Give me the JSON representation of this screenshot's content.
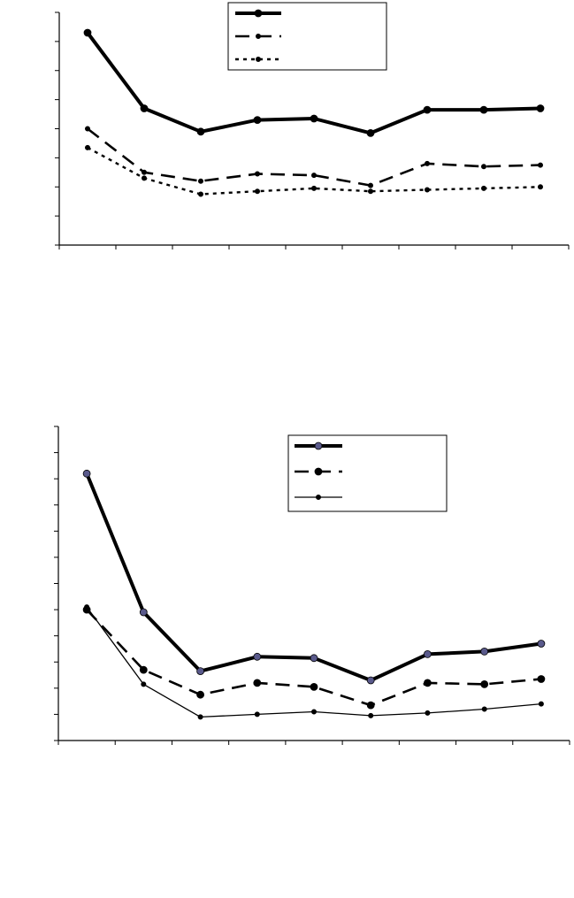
{
  "chart_data": [
    {
      "type": "line",
      "title": "",
      "xlabel": "",
      "ylabel": "",
      "x": [
        1,
        2,
        3,
        4,
        5,
        6,
        7,
        8,
        9
      ],
      "xlim": [
        0.5,
        9.5
      ],
      "ylim": [
        0,
        8
      ],
      "y_tick_count": 9,
      "x_tick_count": 10,
      "grid": false,
      "legend": "top-center",
      "series": [
        {
          "style": "solid-thick",
          "marker": "circle",
          "color": "#000000",
          "values": [
            7.3,
            4.7,
            3.9,
            4.3,
            4.35,
            3.85,
            4.65,
            4.65,
            4.7
          ]
        },
        {
          "style": "long-dash",
          "marker": "small-circle",
          "color": "#000000",
          "values": [
            4.0,
            2.5,
            2.2,
            2.45,
            2.4,
            2.05,
            2.8,
            2.7,
            2.75
          ]
        },
        {
          "style": "dotted",
          "marker": "small-circle",
          "color": "#000000",
          "values": [
            3.35,
            2.3,
            1.75,
            1.85,
            1.95,
            1.85,
            1.9,
            1.95,
            2.0
          ]
        }
      ]
    },
    {
      "type": "line",
      "title": "",
      "xlabel": "",
      "ylabel": "",
      "x": [
        1,
        2,
        3,
        4,
        5,
        6,
        7,
        8,
        9
      ],
      "xlim": [
        0.5,
        9.5
      ],
      "ylim": [
        0,
        12
      ],
      "y_tick_count": 13,
      "x_tick_count": 10,
      "grid": false,
      "legend": "top-right",
      "series": [
        {
          "style": "solid-thick",
          "marker": "circle",
          "color": "#000000",
          "marker_fill": "#5a5a8c",
          "values": [
            10.2,
            4.9,
            2.65,
            3.2,
            3.15,
            2.3,
            3.3,
            3.4,
            3.7
          ]
        },
        {
          "style": "long-dash",
          "marker": "circle",
          "color": "#000000",
          "values": [
            5.0,
            2.7,
            1.75,
            2.2,
            2.05,
            1.35,
            2.2,
            2.15,
            2.35
          ]
        },
        {
          "style": "solid-thin",
          "marker": "small-circle",
          "color": "#000000",
          "values": [
            5.1,
            2.15,
            0.9,
            1.0,
            1.1,
            0.95,
            1.05,
            1.2,
            1.4
          ]
        }
      ]
    }
  ]
}
